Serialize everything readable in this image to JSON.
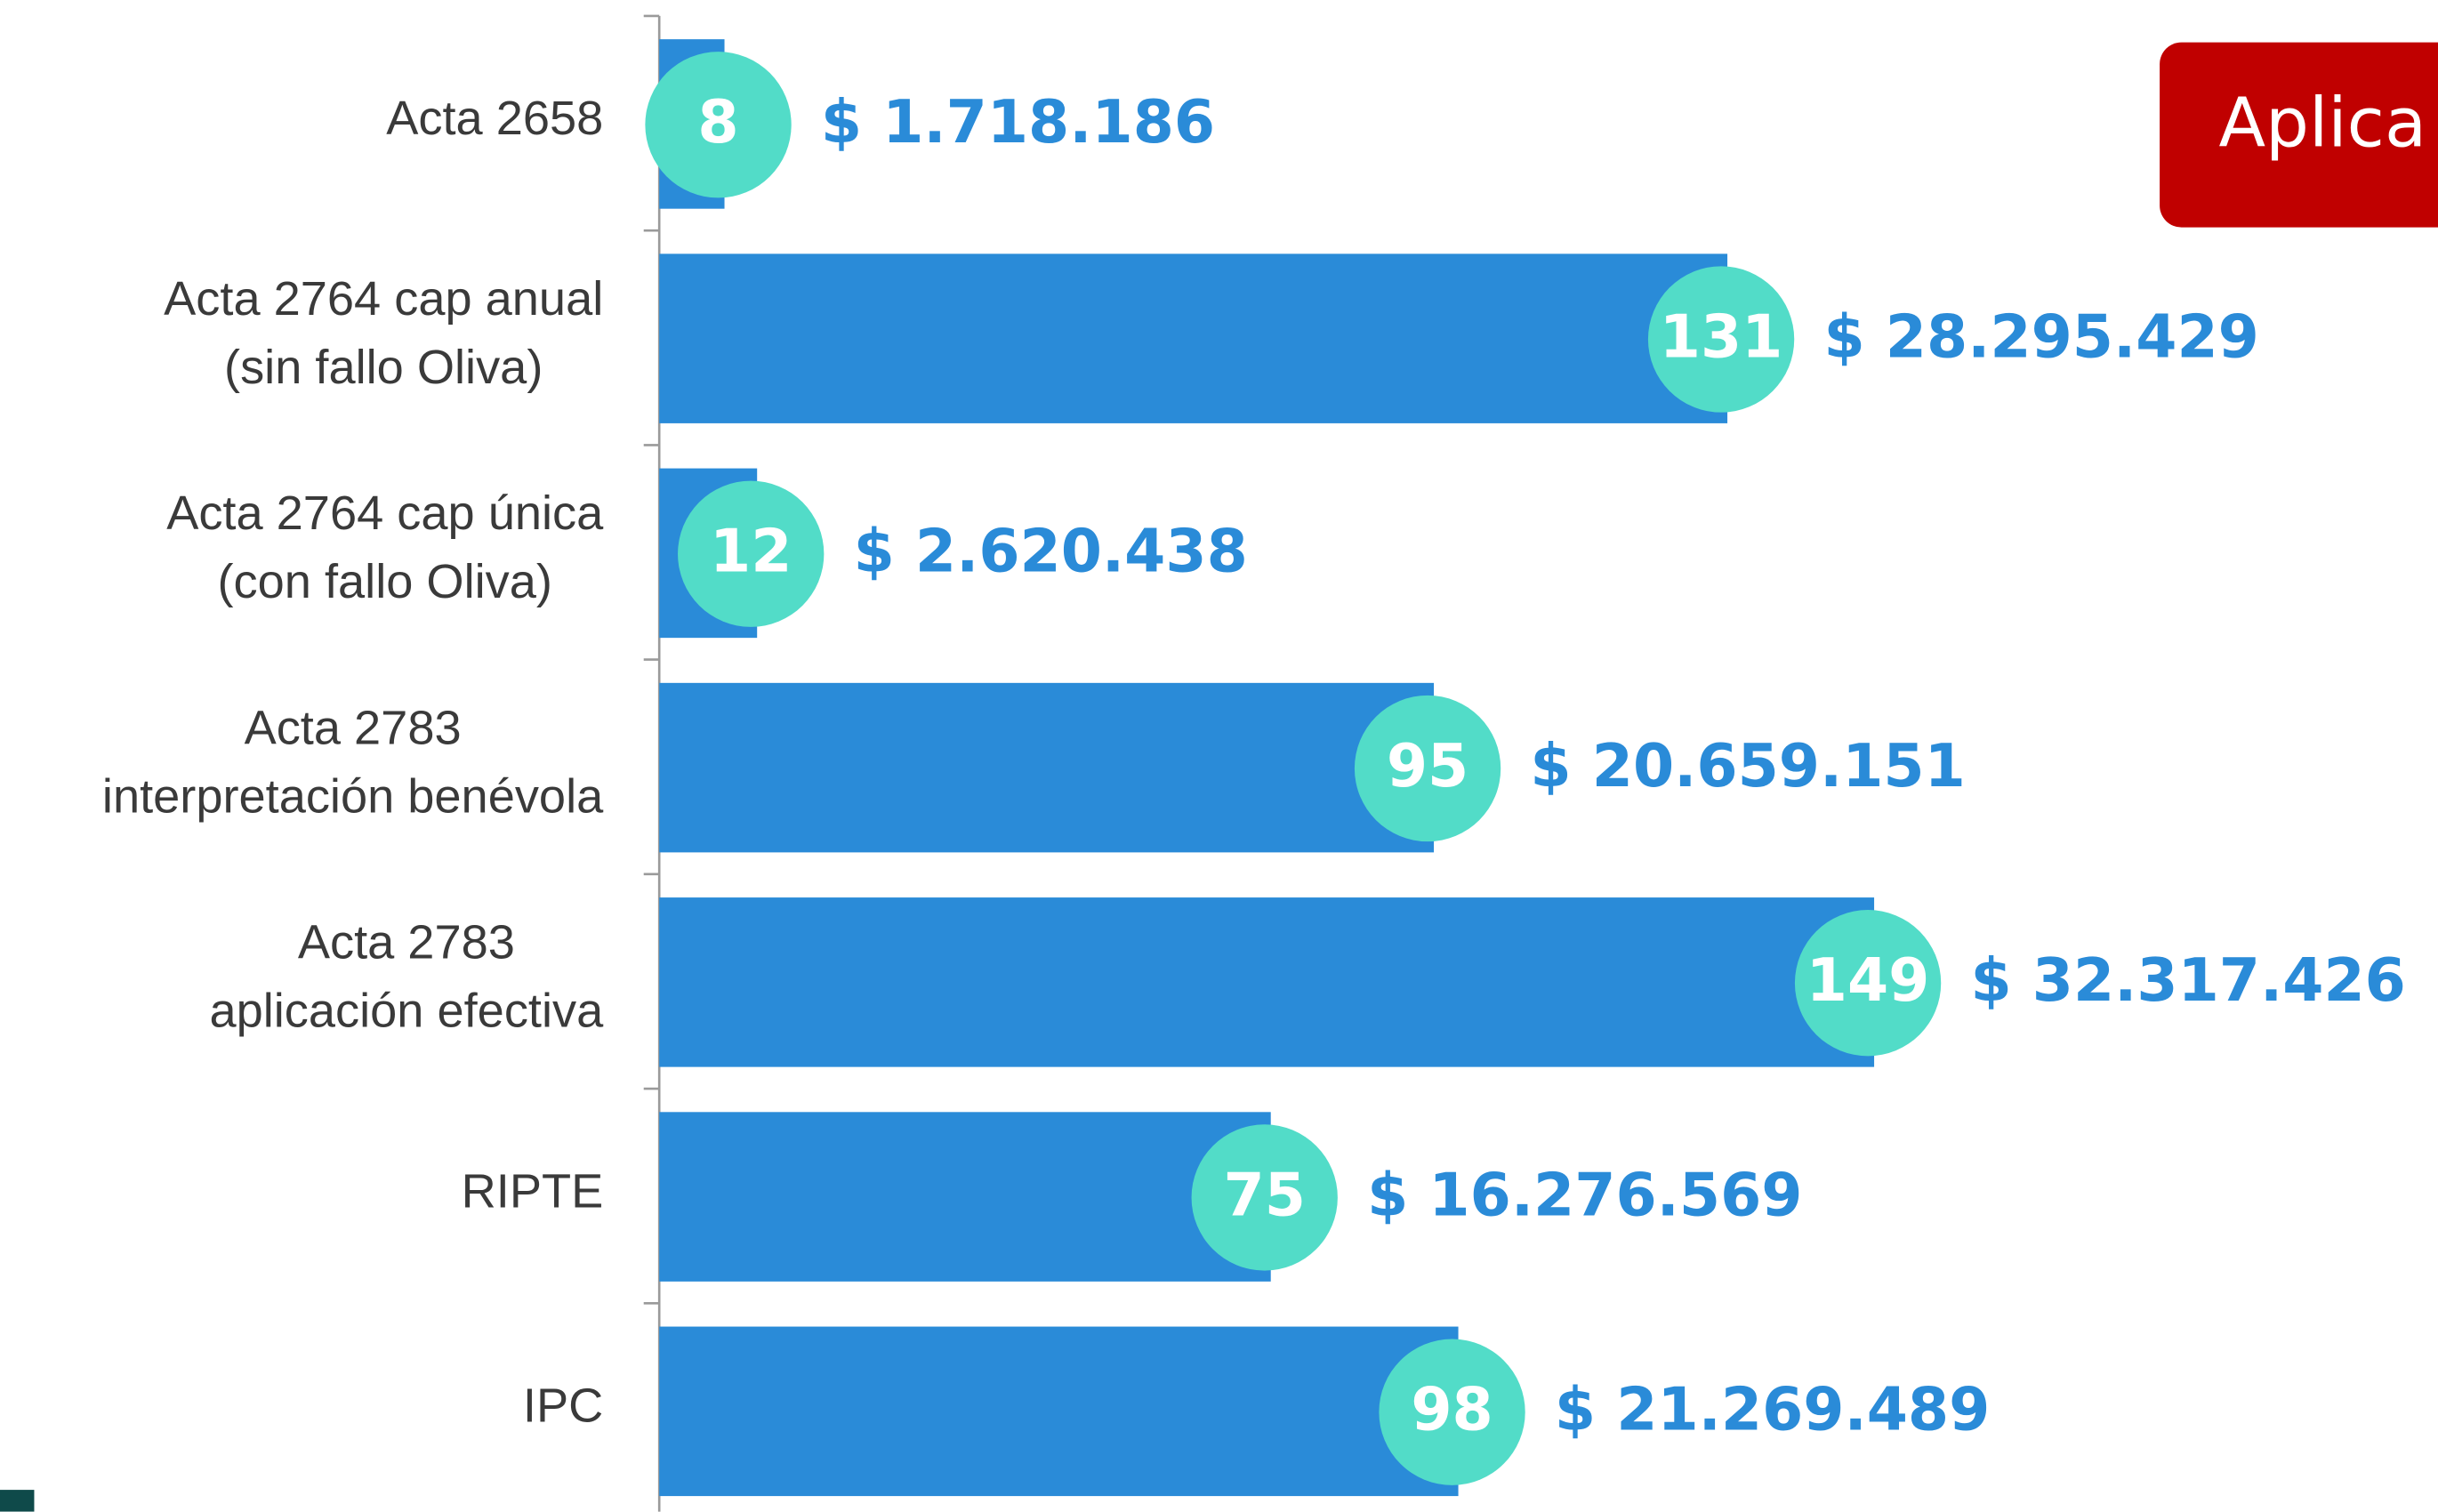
{
  "chart_data": {
    "type": "bar",
    "categories": [
      [
        "Acta 2658"
      ],
      [
        "Acta 2764 cap anual",
        "(sin fallo Oliva)"
      ],
      [
        "Acta 2764 cap única",
        "(con fallo Oliva)"
      ],
      [
        "Acta 2783",
        "interpretación benévola"
      ],
      [
        "Acta 2783",
        "aplicación efectiva"
      ],
      [
        "RIPTE"
      ],
      [
        "IPC"
      ]
    ],
    "values": [
      8,
      131,
      12,
      95,
      149,
      75,
      98
    ],
    "amounts": [
      1718186,
      28295429,
      2620438,
      20659151,
      32317426,
      16276569,
      21269489
    ],
    "amount_labels": [
      "$ 1.718.186",
      "$ 28.295.429",
      "$ 2.620.438",
      "$ 20.659.151",
      "$ 32.317.426",
      "$ 16.276.569",
      "$ 21.269.489"
    ],
    "color": "#2a8bd8",
    "bubble_color": "#52dcc8",
    "badge": "Aplica"
  }
}
